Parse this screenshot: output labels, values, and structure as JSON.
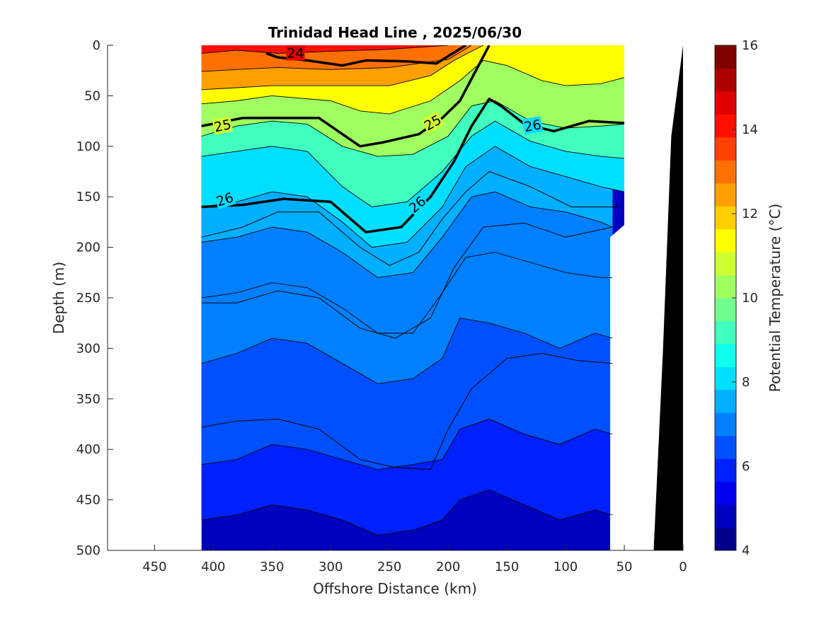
{
  "chart_data": {
    "type": "contour",
    "title": "Trinidad Head Line , 2025/06/30",
    "xlabel": "Offshore Distance (km)",
    "ylabel": "Depth (m)",
    "xlim": [
      490,
      0
    ],
    "ylim": [
      0,
      500
    ],
    "x_reversed": true,
    "y_reversed": true,
    "x_ticks": [
      450,
      400,
      350,
      300,
      250,
      200,
      150,
      100,
      50,
      0
    ],
    "y_ticks": [
      0,
      50,
      100,
      150,
      200,
      250,
      300,
      350,
      400,
      450,
      500
    ],
    "data_extent_km": [
      410,
      50
    ],
    "colorbar": {
      "label": "Potential Temperature (°C)",
      "range": [
        4,
        16
      ],
      "ticks": [
        4,
        6,
        8,
        10,
        12,
        14,
        16
      ],
      "step": 0.5
    },
    "bathymetry": [
      {
        "x": 0,
        "y": 0
      },
      {
        "x": 10,
        "y": 90
      },
      {
        "x": 17,
        "y": 300
      },
      {
        "x": 25,
        "y": 500
      }
    ],
    "isotherms_c": [
      {
        "value": 14,
        "x": [
          410,
          380,
          345,
          300,
          250,
          200
        ],
        "y": [
          8,
          5,
          8,
          6,
          4,
          0
        ]
      },
      {
        "value": 13,
        "x": [
          410,
          380,
          345,
          300,
          250,
          200,
          180
        ],
        "y": [
          26,
          24,
          22,
          24,
          22,
          14,
          0
        ]
      },
      {
        "value": 12,
        "x": [
          410,
          380,
          350,
          300,
          250,
          215,
          195,
          170
        ],
        "y": [
          44,
          42,
          40,
          40,
          40,
          30,
          15,
          0
        ]
      },
      {
        "value": 11,
        "x": [
          410,
          380,
          350,
          300,
          275,
          250,
          215,
          190,
          170,
          150,
          120,
          100,
          70,
          50
        ],
        "y": [
          58,
          55,
          50,
          55,
          65,
          68,
          55,
          35,
          15,
          20,
          35,
          40,
          38,
          32
        ]
      },
      {
        "value": 10,
        "x": [
          410,
          380,
          350,
          320,
          290,
          260,
          230,
          200,
          180,
          160,
          130,
          100,
          70,
          50
        ],
        "y": [
          90,
          80,
          75,
          78,
          100,
          110,
          108,
          90,
          60,
          55,
          75,
          82,
          80,
          78
        ]
      },
      {
        "value": 9,
        "x": [
          410,
          380,
          350,
          320,
          290,
          265,
          235,
          205,
          180,
          160,
          130,
          100,
          70,
          50
        ],
        "y": [
          110,
          105,
          100,
          105,
          140,
          160,
          155,
          125,
          90,
          75,
          95,
          105,
          110,
          112
        ]
      },
      {
        "value": 8,
        "x": [
          410,
          380,
          350,
          320,
          290,
          265,
          235,
          205,
          185,
          160,
          130,
          100,
          70,
          50
        ],
        "y": [
          160,
          155,
          145,
          150,
          175,
          200,
          195,
          160,
          120,
          100,
          120,
          130,
          140,
          145
        ]
      },
      {
        "value": 7.5,
        "x": [
          410,
          380,
          350,
          320,
          290,
          260,
          230,
          205,
          180,
          160,
          130,
          100,
          70,
          60
        ],
        "y": [
          195,
          190,
          180,
          185,
          205,
          230,
          225,
          190,
          150,
          145,
          160,
          165,
          175,
          180
        ]
      },
      {
        "value": 7,
        "x": [
          410,
          380,
          350,
          320,
          290,
          260,
          230,
          205,
          185,
          160,
          130,
          100,
          70,
          60
        ],
        "y": [
          250,
          245,
          235,
          240,
          260,
          285,
          285,
          245,
          210,
          205,
          215,
          225,
          230,
          230
        ]
      },
      {
        "value": 6.5,
        "x": [
          410,
          380,
          350,
          320,
          290,
          260,
          230,
          205,
          190,
          165,
          135,
          105,
          75,
          60
        ],
        "y": [
          315,
          305,
          290,
          295,
          315,
          335,
          330,
          310,
          270,
          275,
          285,
          300,
          285,
          290
        ]
      },
      {
        "value": 6,
        "x": [
          410,
          380,
          350,
          320,
          290,
          260,
          230,
          205,
          190,
          165,
          135,
          105,
          75,
          60
        ],
        "y": [
          415,
          410,
          395,
          400,
          410,
          420,
          415,
          410,
          380,
          370,
          385,
          395,
          380,
          385
        ]
      },
      {
        "value": 5.5,
        "x": [
          410,
          380,
          350,
          320,
          290,
          260,
          230,
          205,
          190,
          165,
          135,
          105,
          75,
          60
        ],
        "y": [
          470,
          465,
          455,
          460,
          470,
          485,
          480,
          470,
          450,
          440,
          455,
          470,
          460,
          465
        ]
      }
    ],
    "density_contours": [
      {
        "value": 24,
        "label": "24",
        "x": [
          355,
          345,
          320,
          290,
          270,
          235,
          210,
          185
        ],
        "y": [
          8,
          12,
          15,
          20,
          15,
          16,
          18,
          0
        ]
      },
      {
        "value": 25,
        "label": "25",
        "x": [
          410,
          375,
          340,
          310,
          275,
          255,
          225,
          205,
          190,
          165
        ],
        "y": [
          80,
          72,
          72,
          72,
          100,
          96,
          88,
          72,
          55,
          0
        ]
      },
      {
        "value": 26,
        "label": "26",
        "x": [
          410,
          375,
          340,
          300,
          270,
          240,
          215,
          195,
          180,
          165,
          155,
          135,
          110,
          80,
          50
        ],
        "y": [
          160,
          158,
          152,
          155,
          185,
          180,
          150,
          115,
          80,
          53,
          60,
          78,
          85,
          75,
          77
        ]
      },
      {
        "value": 26.2,
        "label": "",
        "x": [
          410,
          375,
          345,
          310,
          275,
          250,
          225,
          205,
          185,
          165,
          130,
          95,
          70,
          55
        ],
        "y": [
          190,
          180,
          165,
          165,
          200,
          218,
          205,
          172,
          145,
          125,
          140,
          160,
          160,
          160
        ]
      },
      {
        "value": 26.4,
        "label": "",
        "x": [
          410,
          380,
          345,
          310,
          275,
          245,
          215,
          195,
          170,
          135,
          100,
          60
        ],
        "y": [
          255,
          255,
          243,
          250,
          280,
          290,
          270,
          220,
          180,
          176,
          190,
          180
        ]
      },
      {
        "value": 26.6,
        "label": "",
        "x": [
          410,
          380,
          345,
          310,
          275,
          245,
          215,
          200,
          180,
          150,
          120,
          90,
          60
        ],
        "y": [
          378,
          372,
          370,
          380,
          410,
          418,
          420,
          380,
          340,
          310,
          305,
          312,
          315
        ]
      }
    ],
    "color_scale": [
      "#00008f",
      "#0000bf",
      "#0000ef",
      "#0020ff",
      "#0050ff",
      "#0080ff",
      "#00afff",
      "#00dfff",
      "#10ffef",
      "#40ffbf",
      "#70ff8f",
      "#9fff60",
      "#cfff30",
      "#ffff00",
      "#ffcf00",
      "#ff9f00",
      "#ff7000",
      "#ff4000",
      "#ff1000",
      "#df0000",
      "#af0000",
      "#800000"
    ]
  }
}
